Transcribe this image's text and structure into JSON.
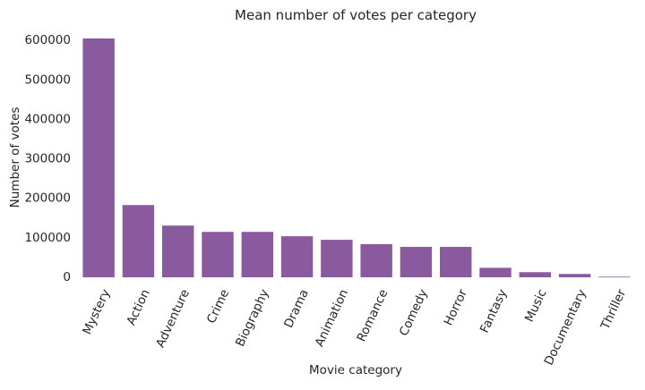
{
  "chart_data": {
    "type": "bar",
    "title": "Mean number of votes per category",
    "xlabel": "Movie category",
    "ylabel": "Number of votes",
    "categories": [
      "Mystery",
      "Action",
      "Adventure",
      "Crime",
      "Biography",
      "Drama",
      "Animation",
      "Romance",
      "Comedy",
      "Horror",
      "Fantasy",
      "Music",
      "Documentary",
      "Thriller"
    ],
    "values": [
      605000,
      183000,
      131000,
      115000,
      115000,
      104000,
      95000,
      84000,
      77000,
      77000,
      24000,
      13000,
      8500,
      1500
    ],
    "ylim": [
      0,
      605000
    ],
    "yticks": [
      0,
      100000,
      200000,
      300000,
      400000,
      500000,
      600000
    ],
    "ytick_labels": [
      "0",
      "100000",
      "200000",
      "300000",
      "400000",
      "500000",
      "600000"
    ],
    "grid": false,
    "bar_color": "#8a5a9e"
  }
}
